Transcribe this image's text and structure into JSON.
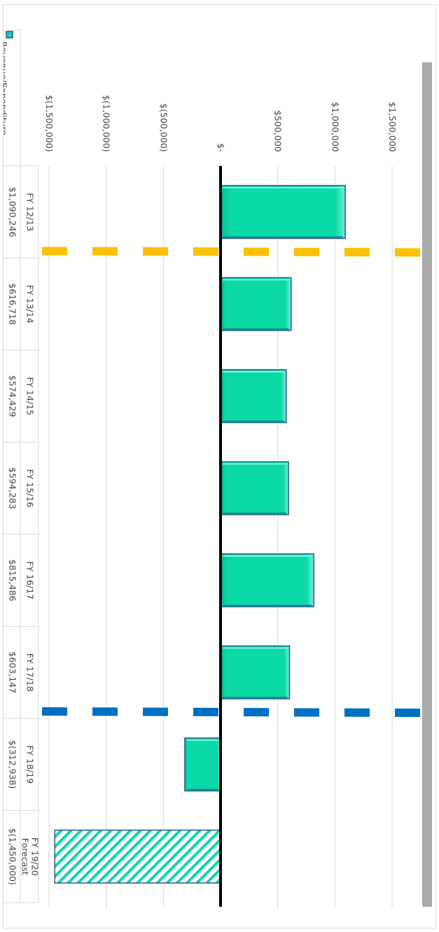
{
  "chart_data": {
    "type": "bar",
    "orientation": "rotated-90-clockwise",
    "series": [
      {
        "name": "Revenue/Expenditure",
        "values": [
          1090246,
          616718,
          574429,
          594283,
          815486,
          603147,
          -312938,
          -1450000
        ]
      }
    ],
    "categories": [
      [
        "FY 12/13"
      ],
      [
        "FY 13/14"
      ],
      [
        "FY 14/15"
      ],
      [
        "FY 15/16"
      ],
      [
        "FY 16/17"
      ],
      [
        "FY 17/18"
      ],
      [
        "FY 18/19"
      ],
      [
        "FY 19/20",
        "Forecast"
      ]
    ],
    "data_table": [
      "$1,090,246",
      "$616,718",
      "$574,429",
      "$594,283",
      "$815,486",
      "$603,147",
      "$(312,938)",
      "$(1,450,000)"
    ],
    "forecast_index": 7,
    "ylim": [
      -1500000,
      1500000
    ],
    "yticks": [
      {
        "value": -1500000,
        "label": "$(1,500,000)"
      },
      {
        "value": -1000000,
        "label": "$(1,000,000)"
      },
      {
        "value": -500000,
        "label": "$(500,000)"
      },
      {
        "value": 0,
        "label": "$-"
      },
      {
        "value": 500000,
        "label": "$500,000"
      },
      {
        "value": 1000000,
        "label": "$1,000,000"
      },
      {
        "value": 1500000,
        "label": "$1,500,000"
      }
    ],
    "grid": true,
    "reference_lines": [
      {
        "after_category": 0,
        "color": "#ffc000",
        "style": "dashed"
      },
      {
        "after_category": 5,
        "color": "#0070c0",
        "style": "dashed"
      }
    ],
    "colors": {
      "bar": "#0bd9a6",
      "bar_edge": "#2f5597",
      "gridline": "#d9d9d9",
      "zero_line": "#000000",
      "scrollbar": "#aaaaaa"
    }
  }
}
